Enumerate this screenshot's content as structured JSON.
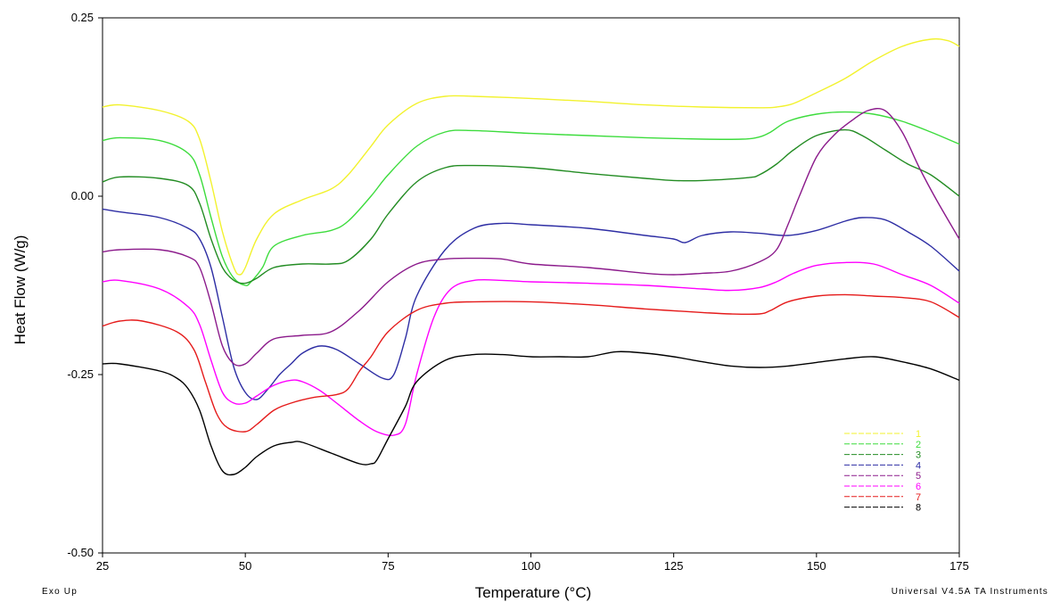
{
  "chart_data": {
    "type": "line",
    "title": "",
    "xlabel": "Temperature (°C)",
    "ylabel": "Heat Flow (W/g)",
    "xlim": [
      25,
      175
    ],
    "ylim": [
      -0.5,
      0.25
    ],
    "x_ticks": [
      25,
      50,
      75,
      100,
      125,
      150,
      175
    ],
    "x_tick_labels": [
      "25",
      "50",
      "75",
      "100",
      "125",
      "150",
      "175"
    ],
    "y_ticks": [
      -0.5,
      -0.25,
      0.0,
      0.25
    ],
    "y_tick_labels": [
      "-0.50",
      "-0.25",
      "0.00",
      "0.25"
    ],
    "grid": false,
    "legend_position": "bottom-right",
    "footer_left": "Exo Up",
    "footer_right": "Universal V4.5A TA Instruments",
    "series": [
      {
        "name": "1",
        "color": "#f2f22e",
        "x": [
          25,
          28,
          35,
          40,
          42,
          44,
          46,
          48,
          49,
          50,
          52,
          55,
          60,
          65,
          68,
          72,
          75,
          80,
          85,
          90,
          100,
          110,
          120,
          130,
          140,
          143,
          146,
          150,
          155,
          160,
          165,
          170,
          173,
          175
        ],
        "y": [
          0.125,
          0.128,
          0.12,
          0.105,
          0.08,
          0.02,
          -0.05,
          -0.1,
          -0.11,
          -0.1,
          -0.06,
          -0.025,
          -0.005,
          0.01,
          0.03,
          0.07,
          0.1,
          0.13,
          0.14,
          0.14,
          0.137,
          0.133,
          0.128,
          0.125,
          0.124,
          0.125,
          0.13,
          0.145,
          0.165,
          0.19,
          0.21,
          0.22,
          0.218,
          0.21
        ]
      },
      {
        "name": "2",
        "color": "#3ddc3d",
        "x": [
          25,
          28,
          35,
          40,
          42,
          44,
          46,
          48,
          50,
          51,
          53,
          55,
          60,
          65,
          68,
          72,
          75,
          80,
          85,
          90,
          100,
          110,
          120,
          130,
          137,
          140,
          142,
          145,
          150,
          155,
          160,
          165,
          170,
          175
        ],
        "y": [
          0.078,
          0.082,
          0.078,
          0.06,
          0.03,
          -0.03,
          -0.085,
          -0.115,
          -0.125,
          -0.12,
          -0.1,
          -0.07,
          -0.055,
          -0.048,
          -0.035,
          0.0,
          0.03,
          0.07,
          0.09,
          0.092,
          0.088,
          0.085,
          0.082,
          0.08,
          0.08,
          0.083,
          0.09,
          0.105,
          0.115,
          0.118,
          0.115,
          0.105,
          0.09,
          0.073
        ]
      },
      {
        "name": "3",
        "color": "#238c23",
        "x": [
          25,
          28,
          35,
          40,
          42,
          44,
          46,
          48,
          50,
          52,
          55,
          60,
          65,
          68,
          72,
          75,
          80,
          85,
          90,
          100,
          110,
          120,
          125,
          130,
          138,
          140,
          143,
          146,
          150,
          155,
          158,
          162,
          166,
          170,
          175
        ],
        "y": [
          0.02,
          0.027,
          0.025,
          0.015,
          -0.01,
          -0.06,
          -0.1,
          -0.118,
          -0.122,
          -0.115,
          -0.1,
          -0.095,
          -0.095,
          -0.09,
          -0.06,
          -0.025,
          0.02,
          0.04,
          0.043,
          0.04,
          0.032,
          0.025,
          0.022,
          0.022,
          0.026,
          0.03,
          0.045,
          0.065,
          0.085,
          0.093,
          0.085,
          0.065,
          0.045,
          0.03,
          0.0
        ]
      },
      {
        "name": "4",
        "color": "#2e2ea4",
        "x": [
          25,
          28,
          35,
          40,
          42,
          44,
          46,
          48,
          50,
          52,
          54,
          56,
          58,
          60,
          63,
          66,
          70,
          74,
          76,
          78,
          80,
          85,
          90,
          95,
          100,
          110,
          120,
          125,
          127,
          130,
          135,
          140,
          145,
          150,
          155,
          158,
          162,
          166,
          170,
          175
        ],
        "y": [
          -0.018,
          -0.022,
          -0.03,
          -0.045,
          -0.06,
          -0.1,
          -0.17,
          -0.24,
          -0.275,
          -0.285,
          -0.27,
          -0.25,
          -0.235,
          -0.22,
          -0.21,
          -0.215,
          -0.235,
          -0.255,
          -0.25,
          -0.2,
          -0.14,
          -0.075,
          -0.045,
          -0.038,
          -0.04,
          -0.045,
          -0.055,
          -0.06,
          -0.065,
          -0.055,
          -0.05,
          -0.052,
          -0.055,
          -0.048,
          -0.035,
          -0.03,
          -0.033,
          -0.05,
          -0.07,
          -0.105
        ]
      },
      {
        "name": "5",
        "color": "#8b1a8b",
        "x": [
          25,
          28,
          35,
          40,
          42,
          44,
          46,
          48,
          50,
          52,
          55,
          60,
          65,
          70,
          75,
          80,
          85,
          90,
          95,
          100,
          110,
          120,
          125,
          130,
          135,
          140,
          143,
          145,
          147,
          150,
          153,
          156,
          159,
          162,
          165,
          168,
          171,
          175
        ],
        "y": [
          -0.078,
          -0.075,
          -0.075,
          -0.085,
          -0.1,
          -0.15,
          -0.21,
          -0.235,
          -0.235,
          -0.22,
          -0.2,
          -0.195,
          -0.19,
          -0.16,
          -0.12,
          -0.095,
          -0.088,
          -0.087,
          -0.088,
          -0.095,
          -0.1,
          -0.108,
          -0.11,
          -0.108,
          -0.105,
          -0.092,
          -0.075,
          -0.04,
          0.0,
          0.055,
          0.085,
          0.105,
          0.12,
          0.12,
          0.09,
          0.04,
          -0.005,
          -0.06
        ]
      },
      {
        "name": "6",
        "color": "#ff00ff",
        "x": [
          25,
          28,
          35,
          40,
          42,
          44,
          46,
          48,
          50,
          52,
          55,
          58,
          60,
          63,
          66,
          70,
          73,
          76,
          78,
          80,
          83,
          86,
          90,
          95,
          100,
          110,
          120,
          130,
          135,
          140,
          143,
          146,
          150,
          155,
          160,
          165,
          170,
          175
        ],
        "y": [
          -0.12,
          -0.118,
          -0.13,
          -0.155,
          -0.18,
          -0.23,
          -0.275,
          -0.29,
          -0.29,
          -0.28,
          -0.265,
          -0.258,
          -0.26,
          -0.272,
          -0.29,
          -0.315,
          -0.33,
          -0.335,
          -0.32,
          -0.25,
          -0.17,
          -0.13,
          -0.118,
          -0.118,
          -0.12,
          -0.122,
          -0.125,
          -0.13,
          -0.132,
          -0.128,
          -0.12,
          -0.108,
          -0.097,
          -0.093,
          -0.095,
          -0.11,
          -0.125,
          -0.15
        ]
      },
      {
        "name": "7",
        "color": "#e51b1b",
        "x": [
          25,
          28,
          32,
          38,
          41,
          43,
          45,
          47,
          50,
          52,
          55,
          58,
          62,
          66,
          68,
          70,
          72,
          75,
          80,
          85,
          90,
          100,
          110,
          120,
          130,
          135,
          140,
          142,
          145,
          150,
          155,
          160,
          165,
          170,
          175
        ],
        "y": [
          -0.182,
          -0.175,
          -0.175,
          -0.19,
          -0.215,
          -0.26,
          -0.305,
          -0.325,
          -0.33,
          -0.32,
          -0.3,
          -0.29,
          -0.282,
          -0.278,
          -0.27,
          -0.245,
          -0.225,
          -0.19,
          -0.16,
          -0.15,
          -0.148,
          -0.148,
          -0.152,
          -0.158,
          -0.163,
          -0.165,
          -0.165,
          -0.16,
          -0.148,
          -0.14,
          -0.138,
          -0.14,
          -0.142,
          -0.148,
          -0.17
        ]
      },
      {
        "name": "8",
        "color": "#000000",
        "x": [
          25,
          28,
          35,
          38,
          40,
          42,
          44,
          46,
          48,
          50,
          52,
          55,
          58,
          60,
          65,
          70,
          72,
          73,
          75,
          78,
          80,
          85,
          90,
          95,
          100,
          105,
          110,
          115,
          120,
          125,
          130,
          135,
          140,
          145,
          150,
          155,
          160,
          165,
          170,
          175
        ],
        "y": [
          -0.235,
          -0.235,
          -0.245,
          -0.255,
          -0.27,
          -0.3,
          -0.35,
          -0.385,
          -0.39,
          -0.38,
          -0.365,
          -0.35,
          -0.345,
          -0.345,
          -0.36,
          -0.375,
          -0.375,
          -0.37,
          -0.34,
          -0.295,
          -0.26,
          -0.23,
          -0.222,
          -0.222,
          -0.225,
          -0.225,
          -0.225,
          -0.218,
          -0.22,
          -0.225,
          -0.232,
          -0.238,
          -0.24,
          -0.238,
          -0.233,
          -0.228,
          -0.225,
          -0.232,
          -0.242,
          -0.258
        ]
      }
    ]
  }
}
